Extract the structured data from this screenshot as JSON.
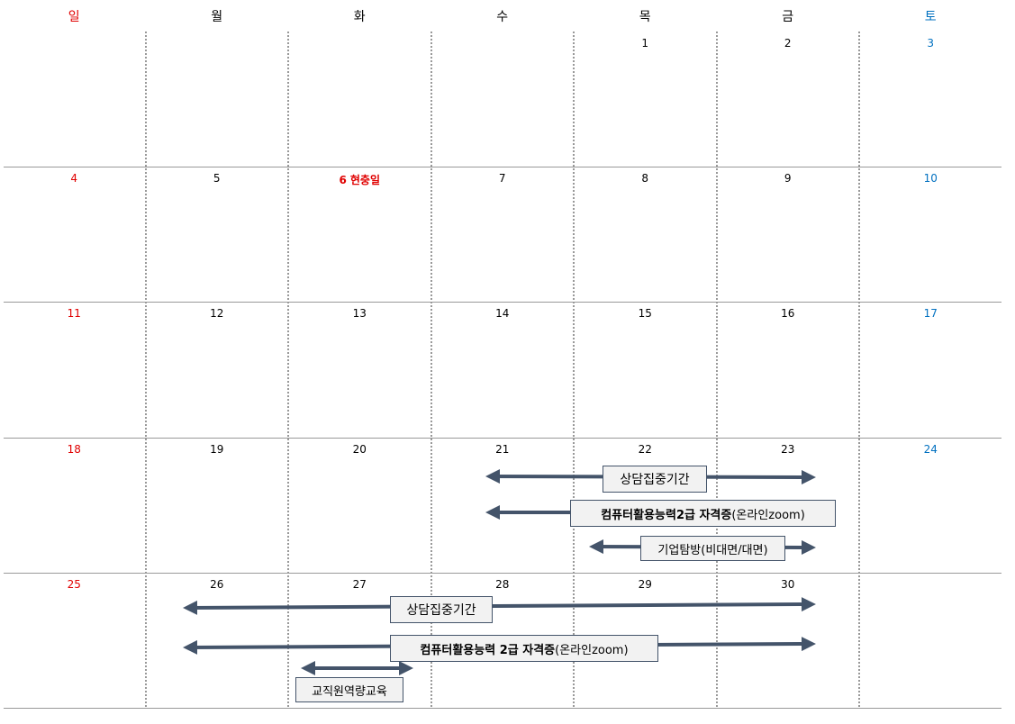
{
  "weekdays": [
    "일",
    "월",
    "화",
    "수",
    "목",
    "금",
    "토"
  ],
  "colors": {
    "sunday": "#e00000",
    "saturday": "#0070c0",
    "arrow": "#44546a",
    "box_bg": "#f2f2f2"
  },
  "weeks": [
    [
      "",
      "",
      "",
      "",
      "1",
      "2",
      "3"
    ],
    [
      "4",
      "5",
      "6",
      "7",
      "8",
      "9",
      "10"
    ],
    [
      "11",
      "12",
      "13",
      "14",
      "15",
      "16",
      "17"
    ],
    [
      "18",
      "19",
      "20",
      "21",
      "22",
      "23",
      "24"
    ],
    [
      "25",
      "26",
      "27",
      "28",
      "29",
      "30",
      ""
    ]
  ],
  "holiday": {
    "day": "6",
    "name": "현충일"
  },
  "events": {
    "w4_counsel": "상담집중기간",
    "w4_cert_bold": "컴퓨터활용능력2급 자격증",
    "w4_cert_rest": "(온라인zoom)",
    "w4_company": "기업탐방(비대면/대면)",
    "w5_counsel": "상담집중기간",
    "w5_cert_bold": "컴퓨터활용능력 2급 자격증",
    "w5_cert_rest": "(온라인zoom)",
    "w5_staff": "교직원역량교육"
  }
}
